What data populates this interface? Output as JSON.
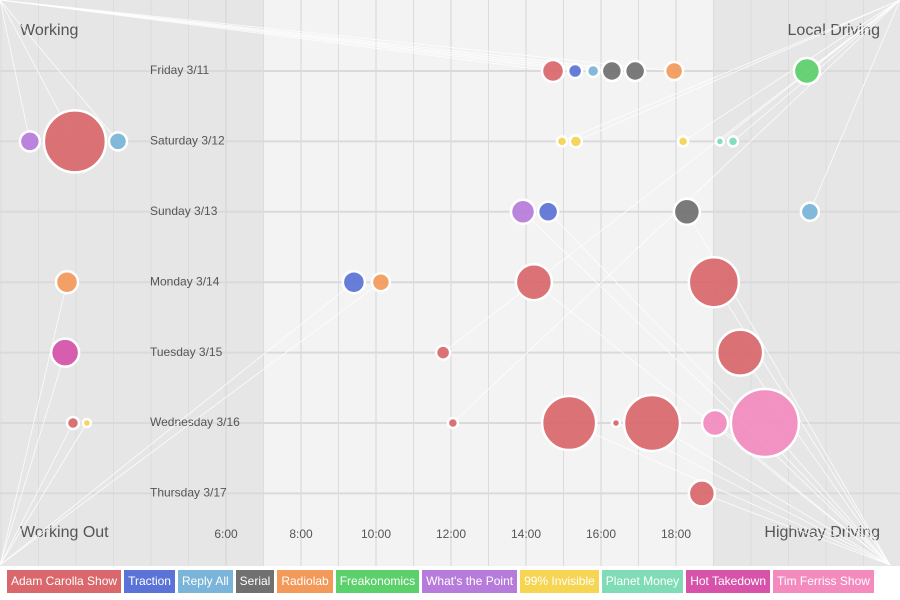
{
  "chart_data": {
    "type": "bubble",
    "xlim": [
      0,
      24
    ],
    "xticks": [
      {
        "value": 6,
        "label": "6:00"
      },
      {
        "value": 8,
        "label": "8:00"
      },
      {
        "value": 10,
        "label": "10:00"
      },
      {
        "value": 12,
        "label": "12:00"
      },
      {
        "value": 14,
        "label": "14:00"
      },
      {
        "value": 16,
        "label": "16:00"
      },
      {
        "value": 18,
        "label": "18:00"
      }
    ],
    "shade": [
      7,
      19
    ],
    "categories": [
      "Friday 3/11",
      "Saturday 3/12",
      "Sunday 3/13",
      "Monday 3/14",
      "Tuesday 3/15",
      "Wednesday 3/16",
      "Thursday 3/17"
    ],
    "locations": [
      "Working",
      "Local Driving",
      "Working Out",
      "Highway Driving"
    ],
    "series": [
      {
        "name": "Adam Carolla Show",
        "color": "#d9676b",
        "x": [
          14.72,
          1.97,
          14.21,
          19.01,
          11.79,
          19.71,
          1.92,
          12.05,
          15.15,
          16.4,
          17.36,
          18.69
        ],
        "day": [
          0,
          1,
          3,
          3,
          4,
          4,
          5,
          5,
          5,
          5,
          5,
          6
        ],
        "size": [
          11,
          31,
          18,
          25,
          7,
          23,
          6,
          5,
          27,
          4,
          28,
          13
        ],
        "loc": [
          0,
          0,
          3,
          3,
          1,
          3,
          2,
          1,
          3,
          3,
          3,
          3
        ]
      },
      {
        "name": "Traction",
        "color": "#5b73d6",
        "x": [
          15.31,
          14.59,
          9.41
        ],
        "day": [
          0,
          2,
          3
        ],
        "size": [
          7,
          10,
          11
        ],
        "loc": [
          0,
          3,
          2
        ]
      },
      {
        "name": "Reply All",
        "color": "#7ab4d9",
        "x": [
          15.79,
          3.12,
          21.57
        ],
        "day": [
          0,
          1,
          2
        ],
        "size": [
          6,
          9,
          9
        ],
        "loc": [
          0,
          0,
          1
        ]
      },
      {
        "name": "Serial",
        "color": "#707070",
        "x": [
          16.29,
          16.91,
          18.29
        ],
        "day": [
          0,
          0,
          2
        ],
        "size": [
          10,
          10,
          13
        ],
        "loc": [
          0,
          0,
          3
        ]
      },
      {
        "name": "Radiolab",
        "color": "#f39a5a",
        "x": [
          17.95,
          1.76,
          10.13
        ],
        "day": [
          0,
          3,
          3
        ],
        "size": [
          9,
          11,
          9
        ],
        "loc": [
          0,
          2,
          2
        ]
      },
      {
        "name": "Freakonomics",
        "color": "#5bd06b",
        "x": [
          21.49
        ],
        "day": [
          0
        ],
        "size": [
          13
        ],
        "loc": [
          1
        ]
      },
      {
        "name": "What's the Point",
        "color": "#b77cdb",
        "x": [
          0.77,
          13.92
        ],
        "day": [
          1,
          2
        ],
        "size": [
          10,
          12
        ],
        "loc": [
          0,
          3
        ]
      },
      {
        "name": "99% Invisible",
        "color": "#f5d552",
        "x": [
          14.96,
          15.33,
          18.19,
          2.29
        ],
        "day": [
          1,
          1,
          1,
          5
        ],
        "size": [
          5,
          6,
          5,
          4
        ],
        "loc": [
          1,
          1,
          1,
          2
        ]
      },
      {
        "name": "Planet Money",
        "color": "#7fdcb7",
        "x": [
          19.17,
          19.52
        ],
        "day": [
          1,
          1
        ],
        "size": [
          4,
          5
        ],
        "loc": [
          1,
          1
        ]
      },
      {
        "name": "Hot Takedown",
        "color": "#d653a9",
        "x": [
          1.71
        ],
        "day": [
          4
        ],
        "size": [
          14
        ],
        "loc": [
          2
        ]
      },
      {
        "name": "Tim Ferriss Show",
        "color": "#f38bbf",
        "x": [
          19.04,
          20.37
        ],
        "day": [
          5,
          5
        ],
        "size": [
          13,
          34
        ],
        "loc": [
          3,
          3
        ]
      }
    ]
  }
}
